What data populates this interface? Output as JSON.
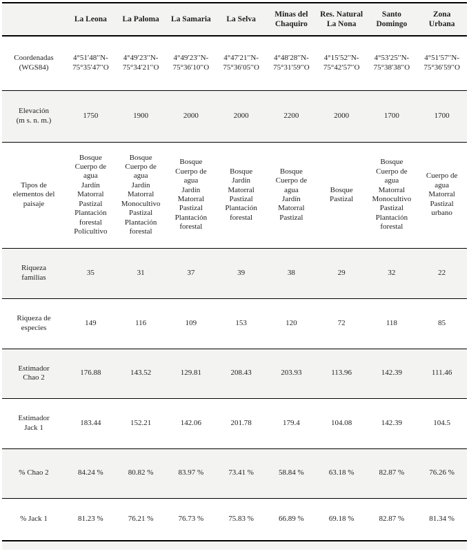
{
  "colors": {
    "row_shade": "#f3f3f1",
    "rule": "#000000",
    "text": "#1e1e1e",
    "background": "#ffffff"
  },
  "table": {
    "columns": [
      "La Leona",
      "La Paloma",
      "La Samaria",
      "La Selva",
      "Minas del\nChaquiro",
      "Res. Natural\nLa Nona",
      "Santo\nDomingo",
      "Zona\nUrbana"
    ],
    "rows": [
      {
        "label": "Coordenadas\n(WGS84)",
        "values": [
          "4°51′48′′N-\n75°35′47′′O",
          "4°49′23′′N-\n75°34′21′′O",
          "4°49′23′′N-\n75°36′10′′O",
          "4°47′21′′N-\n75°36′05′′O",
          "4°48′28′′N-\n75°31′59′′O",
          "4°15′52′′N-\n75°42′57′′O",
          "4°53′25′′N-\n75°38′38′′O",
          "4°51′57′′N-\n75°36′59′′O"
        ]
      },
      {
        "label": "Elevación\n(m s. n. m.)",
        "values": [
          "1750",
          "1900",
          "2000",
          "2000",
          "2200",
          "2000",
          "1700",
          "1700"
        ]
      },
      {
        "label": "Tipos de\nelementos del\npaisaje",
        "values": [
          "Bosque\nCuerpo de agua\nJardín\nMatorral\nPastizal\nPlantación forestal\nPolicultivo",
          "Bosque\nCuerpo de agua\nJardín\nMatorral\nMonocultivo\nPastizal\nPlantación forestal",
          "Bosque\nCuerpo de agua\nJardín\nMatorral\nPastizal\nPlantación forestal",
          "Bosque\nJardín\nMatorral\nPastizal\nPlantación forestal",
          "Bosque\nCuerpo de agua\nJardín\nMatorral\nPastizal",
          "Bosque\nPastizal",
          "Bosque\nCuerpo de agua\nMatorral\nMonocultivo\nPastizal\nPlantación forestal",
          "Cuerpo de agua\nMatorral\nPastizal\nurbano"
        ]
      },
      {
        "label": "Riqueza\nfamilias",
        "values": [
          "35",
          "31",
          "37",
          "39",
          "38",
          "29",
          "32",
          "22"
        ]
      },
      {
        "label": "Riqueza de\nespecies",
        "values": [
          "149",
          "116",
          "109",
          "153",
          "120",
          "72",
          "118",
          "85"
        ]
      },
      {
        "label": "Estimador\nChao 2",
        "values": [
          "176.88",
          "143.52",
          "129.81",
          "208.43",
          "203.93",
          "113.96",
          "142.39",
          "111.46"
        ]
      },
      {
        "label": "Estimador\nJack 1",
        "values": [
          "183.44",
          "152.21",
          "142.06",
          "201.78",
          "179.4",
          "104.08",
          "142.39",
          "104.5"
        ]
      },
      {
        "label": "% Chao 2",
        "values": [
          "84.24 %",
          "80.82 %",
          "83.97 %",
          "73.41 %",
          "58.84 %",
          "63.18 %",
          "82.87 %",
          "76.26 %"
        ]
      },
      {
        "label": "% Jack 1",
        "values": [
          "81.23 %",
          "76.21 %",
          "76.73 %",
          "75.83 %",
          "66.89 %",
          "69.18 %",
          "82.87 %",
          "81.34 %"
        ]
      }
    ]
  }
}
